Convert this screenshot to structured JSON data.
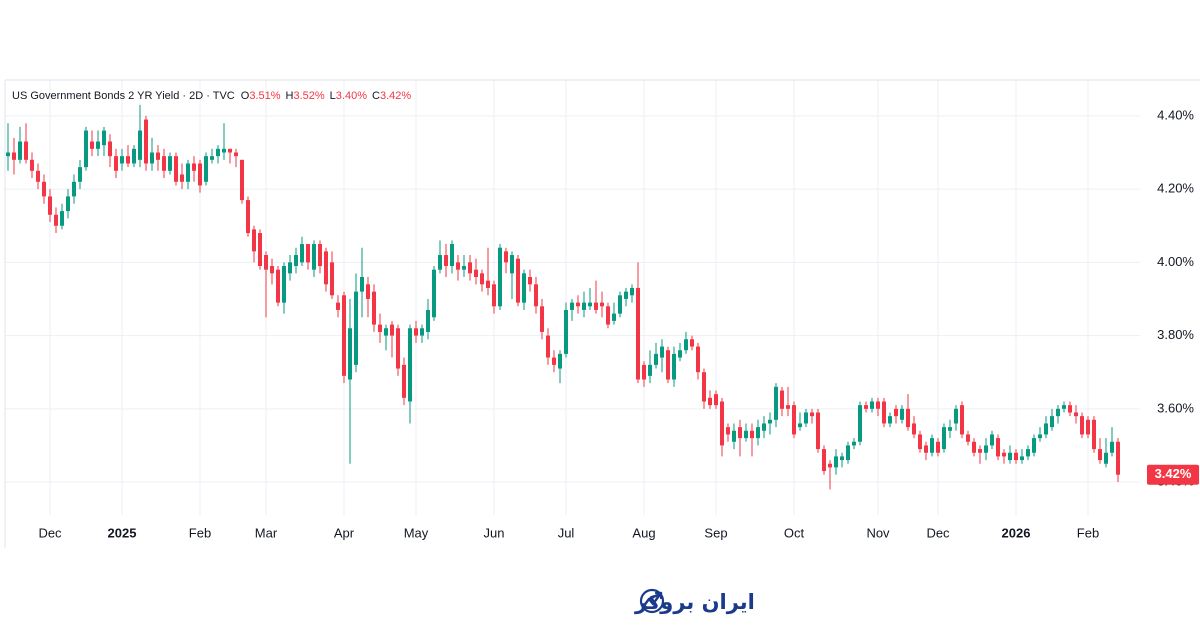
{
  "chart_data": {
    "type": "candlestick",
    "title": "US Government Bonds 2 YR Yield · 2D · TVC",
    "ohlc_legend": [
      {
        "key": "O",
        "text": "3.51%"
      },
      {
        "key": "H",
        "text": "3.52%"
      },
      {
        "key": "L",
        "text": "3.40%"
      },
      {
        "key": "C",
        "text": "3.42%"
      }
    ],
    "last_price_label": "3.42%",
    "up_color": "#089981",
    "down_color": "#f23645",
    "grid": true,
    "ylim": [
      3.31,
      4.498
    ],
    "yticks": [
      {
        "value": 3.4,
        "label": "3.40%"
      },
      {
        "value": 3.6,
        "label": "3.60%"
      },
      {
        "value": 3.8,
        "label": "3.80%"
      },
      {
        "value": 4.0,
        "label": "4.00%"
      },
      {
        "value": 4.2,
        "label": "4.20%"
      },
      {
        "value": 4.4,
        "label": "4.40%"
      }
    ],
    "categories": [
      null,
      null,
      null,
      null,
      null,
      null,
      null,
      "Dec",
      null,
      null,
      null,
      null,
      null,
      null,
      null,
      null,
      null,
      null,
      null,
      "2025",
      null,
      null,
      null,
      null,
      null,
      null,
      null,
      null,
      null,
      null,
      null,
      null,
      "Feb",
      null,
      null,
      null,
      null,
      null,
      null,
      null,
      null,
      null,
      null,
      "Mar",
      null,
      null,
      null,
      null,
      null,
      null,
      null,
      null,
      null,
      null,
      null,
      null,
      "Apr",
      null,
      null,
      null,
      null,
      null,
      null,
      null,
      null,
      null,
      null,
      null,
      "May",
      null,
      null,
      null,
      null,
      null,
      null,
      null,
      null,
      null,
      null,
      null,
      null,
      "Jun",
      null,
      null,
      null,
      null,
      null,
      null,
      null,
      null,
      null,
      null,
      null,
      "Jul",
      null,
      null,
      null,
      null,
      null,
      null,
      null,
      null,
      null,
      null,
      null,
      null,
      "Aug",
      null,
      null,
      null,
      null,
      null,
      null,
      null,
      null,
      null,
      null,
      null,
      "Sep",
      null,
      null,
      null,
      null,
      null,
      null,
      null,
      null,
      null,
      null,
      null,
      null,
      "Oct",
      null,
      null,
      null,
      null,
      null,
      null,
      null,
      null,
      null,
      null,
      null,
      null,
      null,
      "Nov",
      null,
      null,
      null,
      null,
      null,
      null,
      null,
      null,
      null,
      "Dec",
      null,
      null,
      null,
      null,
      null,
      null,
      null,
      null,
      null,
      null,
      null,
      null,
      "2026",
      null,
      null,
      null,
      null,
      null,
      null,
      null,
      null,
      null,
      null,
      null,
      "Feb",
      null,
      null,
      null,
      null,
      null
    ],
    "open": [
      4.29,
      4.3,
      4.28,
      4.33,
      4.28,
      4.25,
      4.22,
      4.18,
      4.13,
      4.1,
      4.14,
      4.18,
      4.22,
      4.26,
      4.33,
      4.31,
      4.32,
      4.33,
      4.29,
      4.27,
      4.29,
      4.27,
      4.28,
      4.39,
      4.27,
      4.3,
      4.29,
      4.25,
      4.29,
      4.24,
      4.22,
      4.27,
      4.27,
      4.22,
      4.28,
      4.29,
      4.3,
      4.31,
      4.3,
      4.28,
      4.17,
      4.09,
      4.08,
      4.02,
      3.99,
      3.98,
      3.89,
      3.97,
      3.99,
      4.0,
      4.05,
      3.98,
      4.05,
      4.03,
      4.0,
      3.89,
      3.91,
      3.68,
      3.72,
      3.92,
      3.94,
      3.92,
      3.83,
      3.8,
      3.83,
      3.82,
      3.72,
      3.62,
      3.82,
      3.8,
      3.81,
      3.85,
      3.98,
      4.02,
      3.99,
      4.0,
      3.98,
      4.0,
      3.98,
      3.97,
      3.95,
      3.94,
      3.88,
      4.03,
      3.97,
      4.01,
      3.89,
      3.96,
      3.94,
      3.88,
      3.8,
      3.74,
      3.71,
      3.75,
      3.87,
      3.89,
      3.87,
      3.88,
      3.89,
      3.89,
      3.88,
      3.84,
      3.86,
      3.9,
      3.91,
      3.93,
      3.72,
      3.69,
      3.72,
      3.74,
      3.76,
      3.68,
      3.74,
      3.76,
      3.79,
      3.77,
      3.7,
      3.63,
      3.64,
      3.62,
      3.55,
      3.51,
      3.55,
      3.52,
      3.54,
      3.52,
      3.54,
      3.56,
      3.57,
      3.65,
      3.61,
      3.61,
      3.55,
      3.56,
      3.59,
      3.59,
      3.49,
      3.45,
      3.44,
      3.46,
      3.46,
      3.5,
      3.51,
      3.61,
      3.6,
      3.62,
      3.62,
      3.56,
      3.6,
      3.57,
      3.6,
      3.56,
      3.53,
      3.5,
      3.48,
      3.51,
      3.49,
      3.54,
      3.56,
      3.61,
      3.53,
      3.51,
      3.49,
      3.48,
      3.5,
      3.52,
      3.48,
      3.46,
      3.48,
      3.46,
      3.47,
      3.48,
      3.52,
      3.53,
      3.55,
      3.58,
      3.6,
      3.61,
      3.59,
      3.58,
      3.57,
      3.57,
      3.49,
      3.45,
      3.48,
      3.51
    ],
    "high": [
      4.38,
      4.34,
      4.37,
      4.38,
      4.3,
      4.27,
      4.24,
      4.2,
      4.15,
      4.16,
      4.2,
      4.24,
      4.28,
      4.37,
      4.36,
      4.36,
      4.37,
      4.35,
      4.31,
      4.31,
      4.32,
      4.32,
      4.43,
      4.4,
      4.34,
      4.32,
      4.31,
      4.3,
      4.3,
      4.27,
      4.28,
      4.29,
      4.28,
      4.3,
      4.31,
      4.32,
      4.38,
      4.31,
      4.31,
      4.28,
      4.18,
      4.1,
      4.09,
      4.03,
      4.01,
      3.99,
      4.0,
      4.02,
      4.04,
      4.07,
      4.05,
      4.06,
      4.06,
      4.04,
      4.03,
      3.91,
      3.92,
      3.9,
      3.97,
      4.04,
      3.96,
      3.94,
      3.86,
      3.83,
      3.84,
      3.83,
      3.74,
      3.83,
      3.84,
      3.83,
      3.9,
      3.99,
      4.06,
      4.05,
      4.06,
      4.02,
      4.02,
      4.02,
      4.01,
      3.98,
      4.04,
      3.95,
      4.05,
      4.04,
      4.03,
      4.02,
      3.98,
      3.98,
      3.96,
      3.9,
      3.82,
      3.76,
      3.76,
      3.89,
      3.9,
      3.91,
      3.92,
      3.93,
      3.95,
      3.92,
      3.89,
      3.89,
      3.92,
      3.93,
      3.94,
      4.0,
      3.73,
      3.76,
      3.78,
      3.79,
      3.77,
      3.77,
      3.78,
      3.81,
      3.8,
      3.78,
      3.71,
      3.65,
      3.65,
      3.63,
      3.56,
      3.56,
      3.57,
      3.56,
      3.56,
      3.57,
      3.58,
      3.59,
      3.67,
      3.66,
      3.66,
      3.62,
      3.59,
      3.6,
      3.6,
      3.6,
      3.5,
      3.46,
      3.49,
      3.48,
      3.51,
      3.52,
      3.62,
      3.62,
      3.63,
      3.63,
      3.63,
      3.59,
      3.61,
      3.61,
      3.64,
      3.58,
      3.54,
      3.51,
      3.53,
      3.52,
      3.56,
      3.57,
      3.61,
      3.62,
      3.54,
      3.52,
      3.5,
      3.52,
      3.54,
      3.53,
      3.49,
      3.5,
      3.49,
      3.49,
      3.5,
      3.53,
      3.55,
      3.58,
      3.6,
      3.61,
      3.62,
      3.62,
      3.61,
      3.59,
      3.58,
      3.58,
      3.52,
      3.52,
      3.55,
      3.52
    ],
    "low": [
      4.25,
      4.24,
      4.27,
      4.27,
      4.23,
      4.2,
      4.16,
      4.11,
      4.08,
      4.09,
      4.12,
      4.16,
      4.2,
      4.25,
      4.29,
      4.29,
      4.29,
      4.26,
      4.23,
      4.25,
      4.26,
      4.26,
      4.26,
      4.25,
      4.25,
      4.25,
      4.23,
      4.24,
      4.21,
      4.2,
      4.2,
      4.22,
      4.19,
      4.21,
      4.27,
      4.27,
      4.28,
      4.27,
      4.26,
      4.16,
      4.07,
      4.0,
      3.98,
      3.85,
      3.94,
      3.88,
      3.86,
      3.95,
      3.97,
      3.99,
      3.98,
      3.96,
      3.97,
      3.92,
      3.9,
      3.85,
      3.67,
      3.45,
      3.7,
      3.85,
      3.85,
      3.81,
      3.78,
      3.76,
      3.74,
      3.69,
      3.61,
      3.56,
      3.78,
      3.78,
      3.79,
      3.84,
      3.97,
      3.96,
      3.97,
      3.95,
      3.96,
      3.95,
      3.94,
      3.92,
      3.91,
      3.86,
      3.87,
      3.97,
      3.9,
      3.88,
      3.87,
      3.92,
      3.86,
      3.79,
      3.72,
      3.7,
      3.67,
      3.74,
      3.84,
      3.86,
      3.85,
      3.87,
      3.86,
      3.85,
      3.82,
      3.83,
      3.85,
      3.88,
      3.89,
      3.67,
      3.66,
      3.67,
      3.71,
      3.7,
      3.67,
      3.66,
      3.73,
      3.75,
      3.76,
      3.68,
      3.6,
      3.6,
      3.6,
      3.47,
      3.51,
      3.49,
      3.47,
      3.51,
      3.47,
      3.5,
      3.52,
      3.53,
      3.55,
      3.58,
      3.58,
      3.52,
      3.54,
      3.55,
      3.56,
      3.48,
      3.42,
      3.38,
      3.42,
      3.44,
      3.45,
      3.49,
      3.5,
      3.59,
      3.59,
      3.58,
      3.55,
      3.55,
      3.56,
      3.56,
      3.54,
      3.52,
      3.48,
      3.46,
      3.47,
      3.47,
      3.48,
      3.52,
      3.54,
      3.52,
      3.5,
      3.47,
      3.45,
      3.46,
      3.49,
      3.46,
      3.45,
      3.45,
      3.45,
      3.45,
      3.46,
      3.47,
      3.51,
      3.52,
      3.54,
      3.56,
      3.59,
      3.58,
      3.56,
      3.52,
      3.52,
      3.48,
      3.45,
      3.44,
      3.47,
      3.4
    ],
    "close": [
      4.3,
      4.28,
      4.33,
      4.28,
      4.25,
      4.22,
      4.18,
      4.13,
      4.1,
      4.14,
      4.18,
      4.22,
      4.26,
      4.36,
      4.31,
      4.33,
      4.36,
      4.29,
      4.25,
      4.29,
      4.27,
      4.31,
      4.36,
      4.27,
      4.3,
      4.28,
      4.25,
      4.29,
      4.22,
      4.22,
      4.27,
      4.25,
      4.21,
      4.29,
      4.29,
      4.31,
      4.31,
      4.3,
      4.29,
      4.17,
      4.08,
      4.03,
      3.99,
      3.98,
      3.97,
      3.89,
      3.99,
      4.0,
      4.02,
      4.05,
      4.0,
      4.05,
      3.99,
      3.94,
      3.91,
      3.87,
      3.69,
      3.82,
      3.92,
      3.96,
      3.9,
      3.83,
      3.81,
      3.82,
      3.8,
      3.71,
      3.63,
      3.82,
      3.8,
      3.82,
      3.87,
      3.98,
      4.02,
      3.99,
      4.05,
      3.98,
      3.99,
      3.97,
      3.96,
      3.94,
      3.93,
      3.88,
      4.04,
      4.0,
      4.02,
      3.89,
      3.97,
      3.94,
      3.88,
      3.81,
      3.74,
      3.72,
      3.75,
      3.87,
      3.89,
      3.88,
      3.89,
      3.89,
      3.87,
      3.88,
      3.83,
      3.86,
      3.91,
      3.92,
      3.93,
      3.68,
      3.68,
      3.72,
      3.75,
      3.77,
      3.68,
      3.75,
      3.76,
      3.79,
      3.77,
      3.7,
      3.62,
      3.61,
      3.61,
      3.5,
      3.53,
      3.54,
      3.52,
      3.54,
      3.52,
      3.55,
      3.56,
      3.57,
      3.66,
      3.6,
      3.6,
      3.53,
      3.56,
      3.59,
      3.58,
      3.49,
      3.43,
      3.44,
      3.47,
      3.47,
      3.5,
      3.51,
      3.61,
      3.6,
      3.62,
      3.6,
      3.56,
      3.58,
      3.58,
      3.6,
      3.55,
      3.53,
      3.49,
      3.48,
      3.52,
      3.48,
      3.55,
      3.55,
      3.6,
      3.53,
      3.51,
      3.48,
      3.48,
      3.5,
      3.53,
      3.47,
      3.47,
      3.48,
      3.46,
      3.47,
      3.49,
      3.52,
      3.53,
      3.56,
      3.58,
      3.6,
      3.61,
      3.59,
      3.58,
      3.53,
      3.53,
      3.49,
      3.46,
      3.48,
      3.51,
      3.42
    ]
  },
  "brand": {
    "name": "ایران بروکر"
  }
}
